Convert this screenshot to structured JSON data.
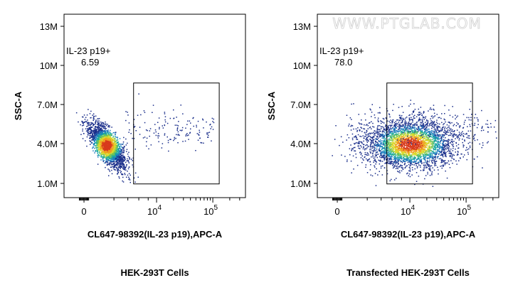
{
  "watermark": "WWW.PTGLAB.COM",
  "chart_data": [
    {
      "type": "scatter",
      "caption": "HEK-293T Cells",
      "xlabel": "CL647-98392(IL-23 p19),APC-A",
      "ylabel": "SSC-A",
      "x_scale": "biexponential",
      "x_ticks": [
        {
          "label": "0",
          "sup": ""
        },
        {
          "label": "10",
          "sup": "4"
        },
        {
          "label": "10",
          "sup": "5"
        }
      ],
      "y_ticks": [
        "1.0M",
        "4.0M",
        "7.0M",
        "10M",
        "13M"
      ],
      "ylim": [
        0,
        14500000
      ],
      "gate": {
        "label": "IL-23 p19+",
        "value": "6.59",
        "x_range": [
          5000,
          130000
        ],
        "y_range": [
          1100000,
          9200000
        ]
      },
      "population": {
        "x_center": 1200,
        "y_center": 4200000,
        "percent_in_gate": 6.59
      }
    },
    {
      "type": "scatter",
      "caption": "Transfected HEK-293T Cells",
      "xlabel": "CL647-98392(IL-23 p19),APC-A",
      "ylabel": "SSC-A",
      "x_scale": "biexponential",
      "x_ticks": [
        {
          "label": "0",
          "sup": ""
        },
        {
          "label": "10",
          "sup": "4"
        },
        {
          "label": "10",
          "sup": "5"
        }
      ],
      "y_ticks": [
        "1.0M",
        "4.0M",
        "7.0M",
        "10M",
        "13M"
      ],
      "ylim": [
        0,
        14500000
      ],
      "gate": {
        "label": "IL-23 p19+",
        "value": "78.0",
        "x_range": [
          5000,
          130000
        ],
        "y_range": [
          1100000,
          9200000
        ]
      },
      "population": {
        "x_center": 10000,
        "y_center": 4300000,
        "percent_in_gate": 78.0
      }
    }
  ]
}
